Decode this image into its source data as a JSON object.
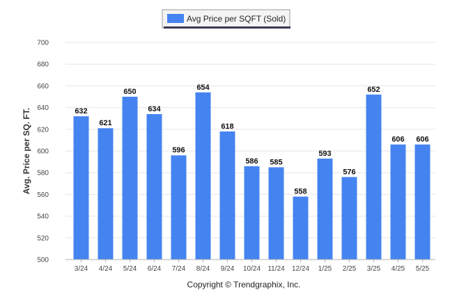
{
  "legend": {
    "label": "Avg Price per SQFT (Sold)"
  },
  "footer": {
    "copyright": "Copyright © Trendgraphix, Inc."
  },
  "chart_data": {
    "type": "bar",
    "ylabel": "Avg. Price per SQ. FT.",
    "xlabel": "",
    "title": "",
    "categories": [
      "3/24",
      "4/24",
      "5/24",
      "6/24",
      "7/24",
      "8/24",
      "9/24",
      "10/24",
      "11/24",
      "12/24",
      "1/25",
      "2/25",
      "3/25",
      "4/25",
      "5/25"
    ],
    "series": [
      {
        "name": "Avg Price per SQFT (Sold)",
        "values": [
          632,
          621,
          650,
          634,
          596,
          654,
          618,
          586,
          585,
          558,
          593,
          576,
          652,
          606,
          606
        ]
      }
    ],
    "ylim": [
      500,
      700
    ],
    "yticks": [
      500,
      520,
      540,
      560,
      580,
      600,
      620,
      640,
      660,
      680,
      700
    ],
    "grid": true,
    "legend_position": "top-center",
    "bar_color": "#4584f0",
    "data_labels": true
  }
}
